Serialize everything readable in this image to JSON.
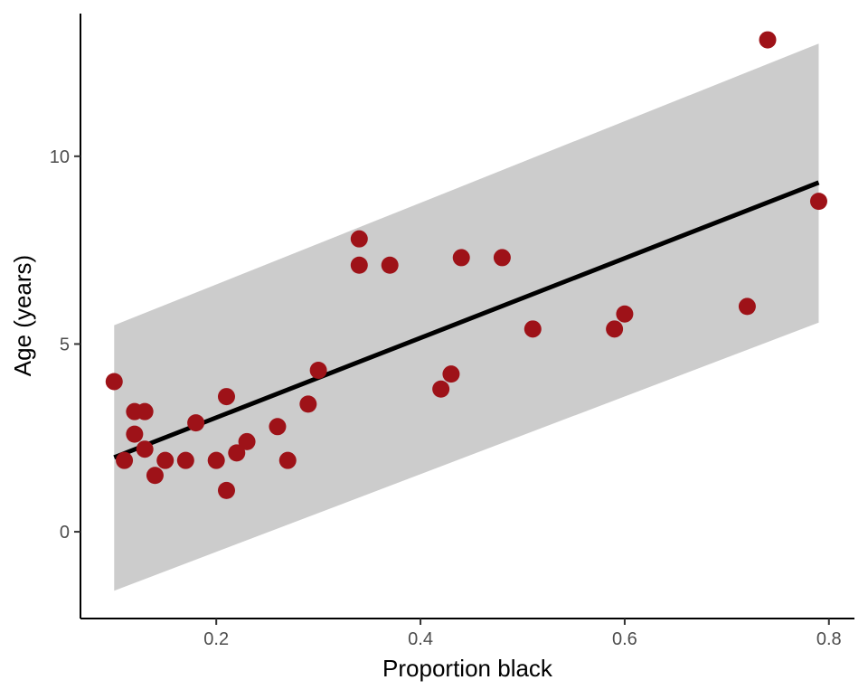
{
  "chart_data": {
    "type": "scatter",
    "title": "",
    "xlabel": "Proportion black",
    "ylabel": "Age (years)",
    "xlim": [
      0.067,
      0.825
    ],
    "ylim": [
      -2.31,
      13.8
    ],
    "xticks": [
      0.2,
      0.4,
      0.6,
      0.8
    ],
    "xtick_labels": [
      "0.2",
      "0.4",
      "0.6",
      "0.8"
    ],
    "yticks": [
      0,
      5,
      10
    ],
    "ytick_labels": [
      "0",
      "5",
      "10"
    ],
    "grid": false,
    "points": {
      "x": [
        0.1,
        0.11,
        0.12,
        0.13,
        0.12,
        0.13,
        0.14,
        0.15,
        0.17,
        0.18,
        0.2,
        0.21,
        0.21,
        0.22,
        0.23,
        0.26,
        0.27,
        0.29,
        0.3,
        0.34,
        0.34,
        0.37,
        0.42,
        0.43,
        0.44,
        0.48,
        0.51,
        0.59,
        0.6,
        0.72,
        0.74,
        0.79
      ],
      "y": [
        4.0,
        1.9,
        3.2,
        3.2,
        2.6,
        2.2,
        1.5,
        1.9,
        1.9,
        2.9,
        1.9,
        3.6,
        1.1,
        2.1,
        2.4,
        2.8,
        1.9,
        3.4,
        4.3,
        7.8,
        7.1,
        7.1,
        3.8,
        4.2,
        7.3,
        7.3,
        5.4,
        5.4,
        5.8,
        6.0,
        13.1,
        8.8
      ]
    },
    "fit_line": {
      "x": [
        0.1,
        0.79
      ],
      "y": [
        1.98,
        9.3
      ]
    },
    "confidence_band": {
      "x": [
        0.1,
        0.79
      ],
      "upper": [
        5.5,
        13.0
      ],
      "lower": [
        -1.57,
        5.57
      ]
    },
    "colors": {
      "points": "#9E1218",
      "line": "#000000",
      "band": "#CCCCCC"
    }
  }
}
